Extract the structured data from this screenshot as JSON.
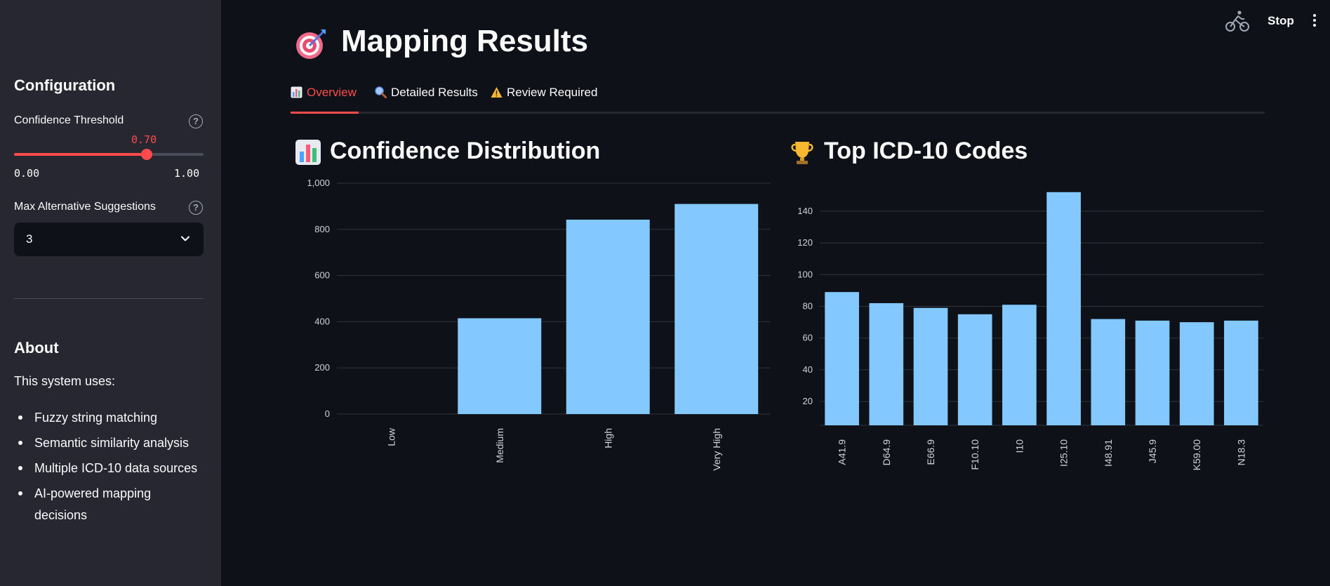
{
  "sidebar": {
    "configuration_heading": "Configuration",
    "confidence_threshold": {
      "label": "Confidence Threshold",
      "value": "0.70",
      "fraction": 0.7,
      "min": "0.00",
      "max": "1.00"
    },
    "max_alternatives": {
      "label": "Max Alternative Suggestions",
      "value": "3"
    },
    "help_icon": "question-circle-icon",
    "about_heading": "About",
    "about_intro": "This system uses:",
    "about_items": [
      "Fuzzy string matching",
      "Semantic similarity analysis",
      "Multiple ICD-10 data sources",
      "AI-powered mapping decisions"
    ]
  },
  "header": {
    "stop_label": "Stop",
    "running_icon": "cyclist-icon",
    "menu_icon": "kebab-menu-icon"
  },
  "main": {
    "title": "Mapping Results",
    "title_icon": "target-icon",
    "tabs": [
      {
        "label": "Overview",
        "icon": "bar-chart-icon",
        "active": true
      },
      {
        "label": "Detailed Results",
        "icon": "magnifier-icon",
        "active": false
      },
      {
        "label": "Review Required",
        "icon": "warning-icon",
        "active": false
      }
    ],
    "accent_color": "#ff4b4b",
    "bar_color": "#83c9ff"
  },
  "chart_data": [
    {
      "type": "bar",
      "title": "Confidence Distribution",
      "title_icon": "bar-chart-icon",
      "categories": [
        "Low",
        "Medium",
        "High",
        "Very High"
      ],
      "values": [
        0,
        415,
        842,
        910
      ],
      "ylim": [
        0,
        1000
      ],
      "yticks": [
        0,
        200,
        400,
        600,
        800,
        1000
      ],
      "ytick_labels": [
        "0",
        "200",
        "400",
        "600",
        "800",
        "1,000"
      ],
      "grid": true
    },
    {
      "type": "bar",
      "title": "Top ICD-10 Codes",
      "title_icon": "trophy-icon",
      "categories": [
        "A41.9",
        "D64.9",
        "E66.9",
        "F10.10",
        "I10",
        "I25.10",
        "I48.91",
        "J45.9",
        "K59.00",
        "N18.3"
      ],
      "values": [
        89,
        82,
        79,
        75,
        81,
        152,
        72,
        71,
        70,
        71
      ],
      "ylim": [
        5,
        155
      ],
      "yticks": [
        20,
        40,
        60,
        80,
        100,
        120,
        140
      ],
      "ytick_labels": [
        "20",
        "40",
        "60",
        "80",
        "100",
        "120",
        "140"
      ],
      "grid": true
    }
  ]
}
